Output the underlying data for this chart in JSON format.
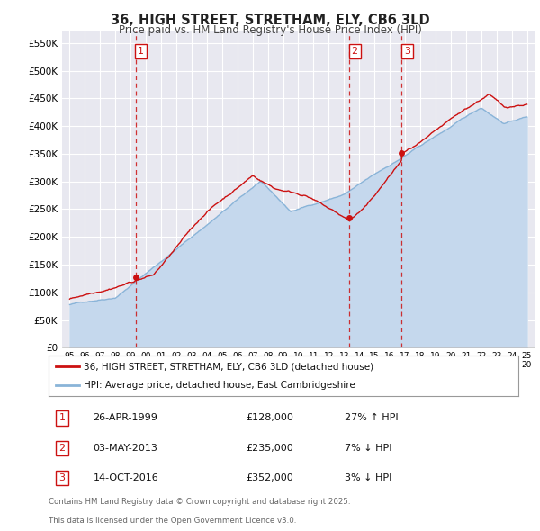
{
  "title_line1": "36, HIGH STREET, STRETHAM, ELY, CB6 3LD",
  "title_line2": "Price paid vs. HM Land Registry's House Price Index (HPI)",
  "ylim": [
    0,
    570000
  ],
  "yticks": [
    0,
    50000,
    100000,
    150000,
    200000,
    250000,
    300000,
    350000,
    400000,
    450000,
    500000,
    550000
  ],
  "ytick_labels": [
    "£0",
    "£50K",
    "£100K",
    "£150K",
    "£200K",
    "£250K",
    "£300K",
    "£350K",
    "£400K",
    "£450K",
    "£500K",
    "£550K"
  ],
  "background_color": "#ffffff",
  "plot_bg_color": "#e8e8f0",
  "grid_color": "#ffffff",
  "red_color": "#cc1111",
  "blue_color": "#8ab4d8",
  "blue_fill_color": "#c5d8ed",
  "vline_color": "#cc1111",
  "sale_points": [
    {
      "year": 1999.32,
      "price": 128000,
      "label": "1"
    },
    {
      "year": 2013.34,
      "price": 235000,
      "label": "2"
    },
    {
      "year": 2016.79,
      "price": 352000,
      "label": "3"
    }
  ],
  "vline_years": [
    1999.32,
    2013.34,
    2016.79
  ],
  "legend_line1": "36, HIGH STREET, STRETHAM, ELY, CB6 3LD (detached house)",
  "legend_line2": "HPI: Average price, detached house, East Cambridgeshire",
  "table_data": [
    {
      "num": "1",
      "date": "26-APR-1999",
      "price": "£128,000",
      "hpi": "27% ↑ HPI"
    },
    {
      "num": "2",
      "date": "03-MAY-2013",
      "price": "£235,000",
      "hpi": "7% ↓ HPI"
    },
    {
      "num": "3",
      "date": "14-OCT-2016",
      "price": "£352,000",
      "hpi": "3% ↓ HPI"
    }
  ],
  "footnote1": "Contains HM Land Registry data © Crown copyright and database right 2025.",
  "footnote2": "This data is licensed under the Open Government Licence v3.0."
}
